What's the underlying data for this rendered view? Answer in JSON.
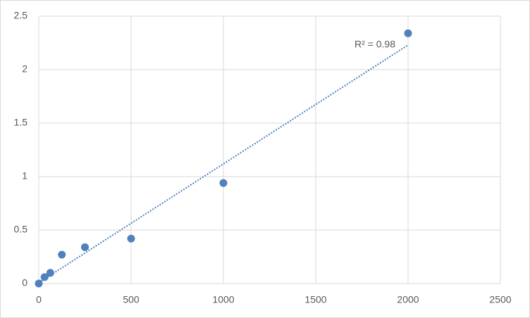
{
  "chart_data": {
    "type": "scatter",
    "x": [
      0,
      31.25,
      62.5,
      125,
      250,
      500,
      1000,
      2000
    ],
    "series": [
      {
        "color": "#4f81bd",
        "values": [
          0,
          0.06,
          0.1,
          0.27,
          0.34,
          0.42,
          0.94,
          2.34
        ]
      }
    ],
    "trendline": {
      "type": "linear",
      "color": "#4f81bd",
      "label": "R² = 0.98"
    },
    "xlim": [
      0,
      2500
    ],
    "xticks": [
      0,
      500,
      1000,
      1500,
      2000,
      2500
    ],
    "ylim": [
      0,
      2.5
    ],
    "yticks": [
      0,
      0.5,
      1,
      1.5,
      2,
      2.5
    ],
    "grid": true
  }
}
